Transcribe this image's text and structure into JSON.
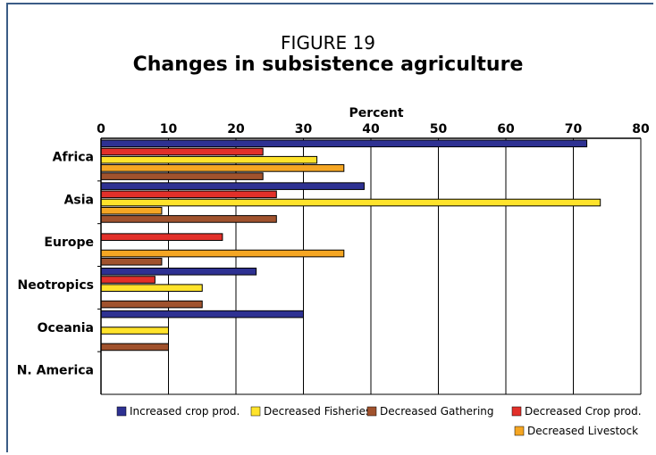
{
  "figure": {
    "number": "FIGURE 19",
    "title": "Changes in subsistence agriculture"
  },
  "chart_data": {
    "type": "bar",
    "orientation": "horizontal",
    "title": "Changes in subsistence agriculture",
    "xlabel": "Percent",
    "ylabel": "",
    "xlim": [
      0,
      80
    ],
    "xticks": [
      "0",
      "10",
      "20",
      "30",
      "40",
      "50",
      "60",
      "70",
      "80"
    ],
    "grid": true,
    "legend_position": "bottom",
    "categories": [
      "Africa",
      "Asia",
      "Europe",
      "Neotropics",
      "Oceania",
      "N. America"
    ],
    "series": [
      {
        "name": "Increased crop prod.",
        "color": "#2e3192",
        "values": [
          72,
          39,
          0,
          23,
          30,
          0
        ]
      },
      {
        "name": "Decreased Crop prod.",
        "color": "#e2302a",
        "values": [
          24,
          26,
          18,
          8,
          0,
          0
        ]
      },
      {
        "name": "Decreased Fisheries",
        "color": "#ffe32b",
        "values": [
          32,
          74,
          0,
          15,
          10,
          0
        ]
      },
      {
        "name": "Decreased Livestock",
        "color": "#f5a623",
        "values": [
          36,
          9,
          36,
          0,
          0,
          0
        ]
      },
      {
        "name": "Decreased Gathering",
        "color": "#a0522d",
        "values": [
          24,
          26,
          9,
          15,
          10,
          0
        ]
      }
    ],
    "legend_order": [
      "Increased crop prod.",
      "Decreased Fisheries",
      "Decreased Gathering",
      "Decreased Crop prod.",
      "Decreased Livestock"
    ]
  }
}
